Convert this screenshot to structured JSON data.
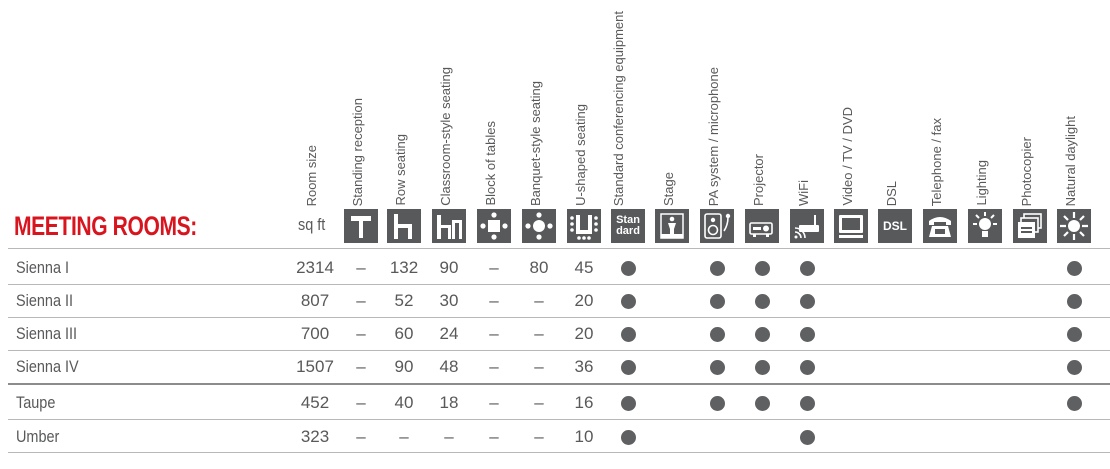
{
  "title": "MEETING ROOMS:",
  "unit_label": "sq ft",
  "colors": {
    "title": "#d8151e",
    "text": "#58595b",
    "icon_bg": "#58595b",
    "dot": "#5f6062",
    "rule": "#b8b8b8"
  },
  "columns": [
    {
      "key": "size",
      "label": "Room size",
      "icon": ""
    },
    {
      "key": "standing",
      "label": "Standing reception",
      "icon": "standing-reception-icon"
    },
    {
      "key": "row",
      "label": "Row seating",
      "icon": "row-seating-icon"
    },
    {
      "key": "classroom",
      "label": "Classroom-style seating",
      "icon": "classroom-seating-icon"
    },
    {
      "key": "block",
      "label": "Block of tables",
      "icon": "block-of-tables-icon"
    },
    {
      "key": "banquet",
      "label": "Banquet-style seating",
      "icon": "banquet-seating-icon"
    },
    {
      "key": "ushape",
      "label": "U-shaped seating",
      "icon": "u-shaped-seating-icon"
    },
    {
      "key": "standard",
      "label": "Standard conferencing equipment",
      "icon": "standard-equipment-icon",
      "icon_text": "Stan dard"
    },
    {
      "key": "stage",
      "label": "Stage",
      "icon": "stage-icon"
    },
    {
      "key": "pa",
      "label": "PA system / microphone",
      "icon": "pa-microphone-icon"
    },
    {
      "key": "projector",
      "label": "Projector",
      "icon": "projector-icon"
    },
    {
      "key": "wifi",
      "label": "WiFi",
      "icon": "wifi-icon"
    },
    {
      "key": "video",
      "label": "Video / TV / DVD",
      "icon": "video-tv-dvd-icon"
    },
    {
      "key": "dsl",
      "label": "DSL",
      "icon": "dsl-icon",
      "icon_text": "DSL"
    },
    {
      "key": "phone",
      "label": "Telephone / fax",
      "icon": "telephone-fax-icon"
    },
    {
      "key": "lighting",
      "label": "Lighting",
      "icon": "lighting-icon"
    },
    {
      "key": "copier",
      "label": "Photocopier",
      "icon": "photocopier-icon"
    },
    {
      "key": "daylight",
      "label": "Natural daylight",
      "icon": "natural-daylight-icon"
    }
  ],
  "rows": [
    {
      "name": "Sienna I",
      "size": "2314",
      "standing": "–",
      "row": "132",
      "classroom": "90",
      "block": "–",
      "banquet": "80",
      "ushape": "45",
      "features": {
        "standard": true,
        "stage": false,
        "pa": true,
        "projector": true,
        "wifi": true,
        "video": false,
        "dsl": false,
        "phone": false,
        "lighting": false,
        "copier": false,
        "daylight": true
      }
    },
    {
      "name": "Sienna II",
      "size": "807",
      "standing": "–",
      "row": "52",
      "classroom": "30",
      "block": "–",
      "banquet": "–",
      "ushape": "20",
      "features": {
        "standard": true,
        "stage": false,
        "pa": true,
        "projector": true,
        "wifi": true,
        "video": false,
        "dsl": false,
        "phone": false,
        "lighting": false,
        "copier": false,
        "daylight": true
      }
    },
    {
      "name": "Sienna III",
      "size": "700",
      "standing": "–",
      "row": "60",
      "classroom": "24",
      "block": "–",
      "banquet": "–",
      "ushape": "20",
      "features": {
        "standard": true,
        "stage": false,
        "pa": true,
        "projector": true,
        "wifi": true,
        "video": false,
        "dsl": false,
        "phone": false,
        "lighting": false,
        "copier": false,
        "daylight": true
      }
    },
    {
      "name": "Sienna IV",
      "size": "1507",
      "standing": "–",
      "row": "90",
      "classroom": "48",
      "block": "–",
      "banquet": "–",
      "ushape": "36",
      "features": {
        "standard": true,
        "stage": false,
        "pa": true,
        "projector": true,
        "wifi": true,
        "video": false,
        "dsl": false,
        "phone": false,
        "lighting": false,
        "copier": false,
        "daylight": true
      }
    },
    {
      "name": "Taupe",
      "size": "452",
      "standing": "–",
      "row": "40",
      "classroom": "18",
      "block": "–",
      "banquet": "–",
      "ushape": "16",
      "features": {
        "standard": true,
        "stage": false,
        "pa": true,
        "projector": true,
        "wifi": true,
        "video": false,
        "dsl": false,
        "phone": false,
        "lighting": false,
        "copier": false,
        "daylight": true
      }
    },
    {
      "name": "Umber",
      "size": "323",
      "standing": "–",
      "row": "–",
      "classroom": "–",
      "block": "–",
      "banquet": "–",
      "ushape": "10",
      "features": {
        "standard": true,
        "stage": false,
        "pa": false,
        "projector": false,
        "wifi": true,
        "video": false,
        "dsl": false,
        "phone": false,
        "lighting": false,
        "copier": false,
        "daylight": false
      }
    }
  ]
}
